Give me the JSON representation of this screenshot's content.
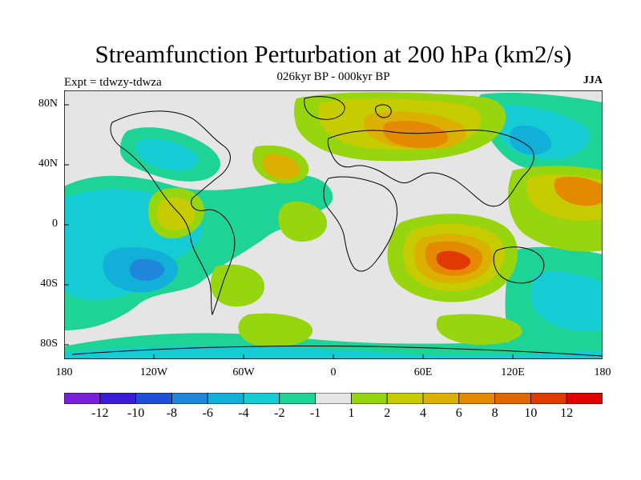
{
  "title": "Streamfunction Perturbation at 200 hPa (km2/s)",
  "subtitle": "026kyr BP - 000kyr BP",
  "left_label": "Expt = tdwzy-tdwza",
  "right_label": "JJA",
  "lat_labels": [
    "80N",
    "40N",
    "0",
    "40S",
    "80S"
  ],
  "lon_labels": [
    "180",
    "120W",
    "60W",
    "0",
    "60E",
    "120E",
    "180"
  ],
  "colorbar": {
    "colors": [
      "#7a1fd9",
      "#3a1cd6",
      "#1f4fd6",
      "#1f86dc",
      "#12b0d8",
      "#16ccd4",
      "#1ed396",
      "#e5e5e5",
      "#97d50f",
      "#c7cc00",
      "#dcb000",
      "#e48a00",
      "#e06700",
      "#e03a00",
      "#e00000"
    ],
    "labels": [
      "-12",
      "-10",
      "-8",
      "-6",
      "-4",
      "-2",
      "-1",
      "1",
      "2",
      "4",
      "6",
      "8",
      "10",
      "12"
    ]
  }
}
